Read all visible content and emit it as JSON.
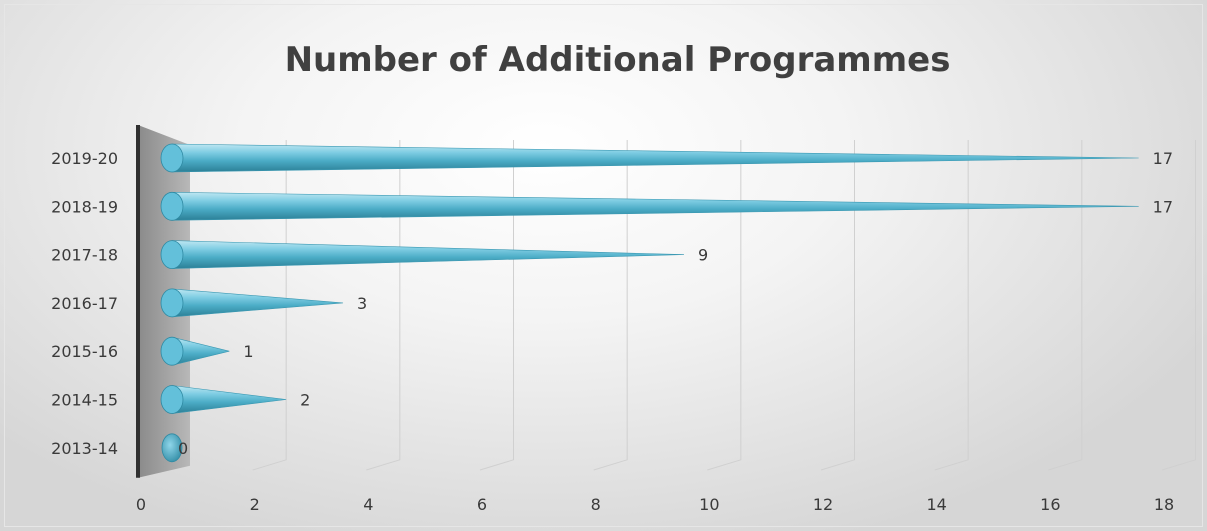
{
  "chart_data": {
    "type": "bar",
    "title": "Number of Additional Programmes",
    "xlabel": "",
    "ylabel": "",
    "categories": [
      "2019-20",
      "2018-19",
      "2017-18",
      "2016-17",
      "2015-16",
      "2014-15",
      "2013-14"
    ],
    "values": [
      17,
      17,
      9,
      3,
      1,
      2,
      0
    ],
    "xlim": [
      0,
      18
    ],
    "x_ticks": [
      "0",
      "2",
      "4",
      "6",
      "8",
      "10",
      "12",
      "14",
      "16",
      "18"
    ],
    "grid": true,
    "legend": "none",
    "bar_color": "#4bacc6",
    "bar_shape": "3d-cone"
  }
}
